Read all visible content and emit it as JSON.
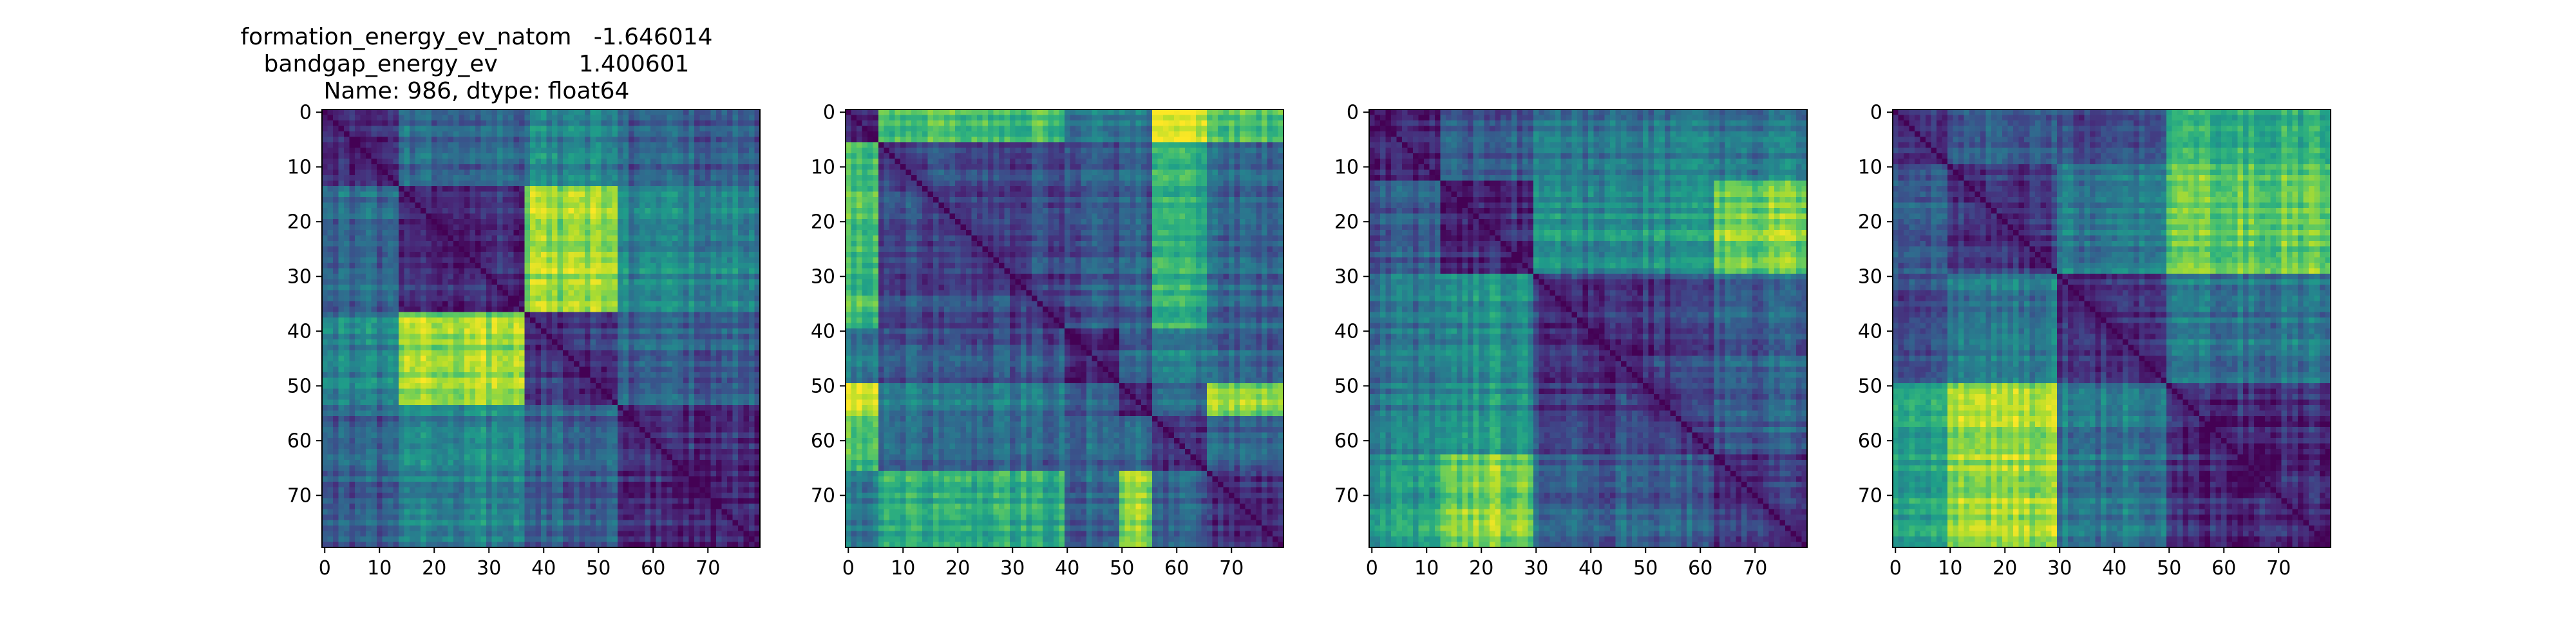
{
  "figure": {
    "title_lines": [
      "formation_energy_ev_natom   -1.646014",
      "bandgap_energy_ev           1.400601",
      "Name: 986, dtype: float64"
    ]
  },
  "colormap": {
    "name": "viridis",
    "stops": [
      "#440154",
      "#482878",
      "#3e4989",
      "#31688e",
      "#26828e",
      "#1f9e89",
      "#35b779",
      "#6ece58",
      "#b5de2b",
      "#fde725"
    ]
  },
  "chart_data": [
    {
      "type": "heatmap",
      "title": "",
      "xlabel": "",
      "ylabel": "",
      "size": 80,
      "xticks": [
        0,
        10,
        20,
        30,
        40,
        50,
        60,
        70
      ],
      "yticks": [
        0,
        10,
        20,
        30,
        40,
        50,
        60,
        70
      ],
      "block_boundaries": [
        0,
        14,
        37,
        54,
        80
      ],
      "block_values": [
        [
          0.15,
          0.35,
          0.45,
          0.3
        ],
        [
          0.35,
          0.15,
          0.85,
          0.45
        ],
        [
          0.45,
          0.85,
          0.15,
          0.3
        ],
        [
          0.3,
          0.45,
          0.3,
          0.12
        ]
      ]
    },
    {
      "type": "heatmap",
      "title": "",
      "xlabel": "",
      "ylabel": "",
      "size": 80,
      "xticks": [
        0,
        10,
        20,
        30,
        40,
        50,
        60,
        70
      ],
      "yticks": [
        0,
        10,
        20,
        30,
        40,
        50,
        60,
        70
      ],
      "block_boundaries": [
        0,
        6,
        40,
        50,
        56,
        66,
        80
      ],
      "block_values": [
        [
          0.12,
          0.7,
          0.4,
          0.4,
          0.95,
          0.7
        ],
        [
          0.7,
          0.2,
          0.25,
          0.3,
          0.6,
          0.3
        ],
        [
          0.4,
          0.25,
          0.12,
          0.3,
          0.4,
          0.3
        ],
        [
          0.95,
          0.4,
          0.3,
          0.15,
          0.3,
          0.8
        ],
        [
          0.7,
          0.3,
          0.3,
          0.3,
          0.15,
          0.3
        ],
        [
          0.4,
          0.6,
          0.3,
          0.8,
          0.3,
          0.15
        ]
      ]
    },
    {
      "type": "heatmap",
      "title": "",
      "xlabel": "",
      "ylabel": "",
      "size": 80,
      "xticks": [
        0,
        10,
        20,
        30,
        40,
        50,
        60,
        70
      ],
      "yticks": [
        0,
        10,
        20,
        30,
        40,
        50,
        60,
        70
      ],
      "block_boundaries": [
        0,
        13,
        30,
        63,
        80
      ],
      "block_values": [
        [
          0.15,
          0.3,
          0.4,
          0.4
        ],
        [
          0.3,
          0.15,
          0.5,
          0.8
        ],
        [
          0.4,
          0.5,
          0.15,
          0.3
        ],
        [
          0.55,
          0.8,
          0.3,
          0.15
        ]
      ]
    },
    {
      "type": "heatmap",
      "title": "",
      "xlabel": "",
      "ylabel": "",
      "size": 80,
      "xticks": [
        0,
        10,
        20,
        30,
        40,
        50,
        60,
        70
      ],
      "yticks": [
        0,
        10,
        20,
        30,
        40,
        50,
        60,
        70
      ],
      "block_boundaries": [
        0,
        10,
        30,
        50,
        80
      ],
      "block_values": [
        [
          0.15,
          0.25,
          0.2,
          0.6
        ],
        [
          0.25,
          0.15,
          0.4,
          0.75
        ],
        [
          0.2,
          0.4,
          0.15,
          0.4
        ],
        [
          0.55,
          0.85,
          0.4,
          0.12
        ]
      ]
    }
  ]
}
